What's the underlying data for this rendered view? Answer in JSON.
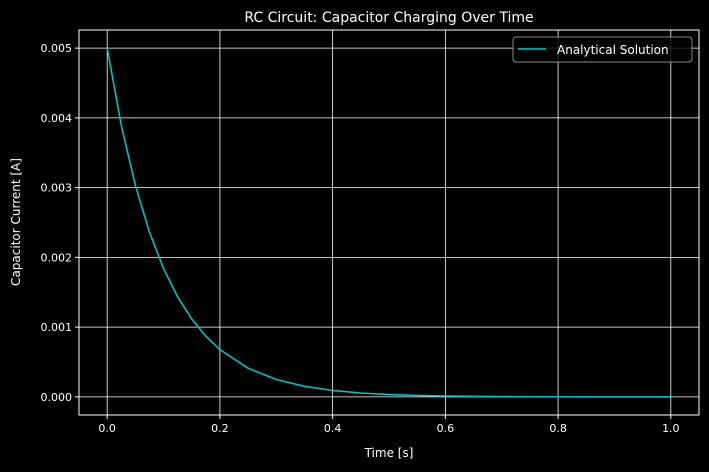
{
  "chart_data": {
    "type": "line",
    "title": "RC Circuit: Capacitor Charging Over Time",
    "xlabel": "Time [s]",
    "ylabel": "Capacitor Current [A]",
    "xlim": [
      -0.05,
      1.05
    ],
    "ylim": [
      -0.00026,
      0.00526
    ],
    "xticks": [
      0.0,
      0.2,
      0.4,
      0.6,
      0.8,
      1.0
    ],
    "xtick_labels": [
      "0.0",
      "0.2",
      "0.4",
      "0.6",
      "0.8",
      "1.0"
    ],
    "yticks": [
      0,
      0.001,
      0.002,
      0.003,
      0.004,
      0.005
    ],
    "ytick_labels": [
      "0.000",
      "0.001",
      "0.002",
      "0.003",
      "0.004",
      "0.005"
    ],
    "grid": true,
    "legend_position": "top-right",
    "series": [
      {
        "name": "Analytical Solution",
        "color": "#00c0c0",
        "x": [
          0,
          0.025,
          0.05,
          0.075,
          0.1,
          0.125,
          0.15,
          0.175,
          0.2,
          0.25,
          0.3,
          0.35,
          0.4,
          0.45,
          0.5,
          0.55,
          0.6,
          0.65,
          0.7,
          0.75,
          0.8,
          0.85,
          0.9,
          0.95,
          1.0
        ],
        "y": [
          0.005,
          0.003894,
          0.003033,
          0.002362,
          0.001839,
          0.001433,
          0.001116,
          0.000869,
          0.000677,
          0.00041,
          0.000249,
          0.000151,
          9.16e-05,
          5.55e-05,
          3.37e-05,
          2.04e-05,
          1.24e-05,
          7.5e-06,
          4.6e-06,
          2.8e-06,
          1.7e-06,
          1e-06,
          6e-07,
          4e-07,
          2e-07
        ]
      }
    ]
  }
}
